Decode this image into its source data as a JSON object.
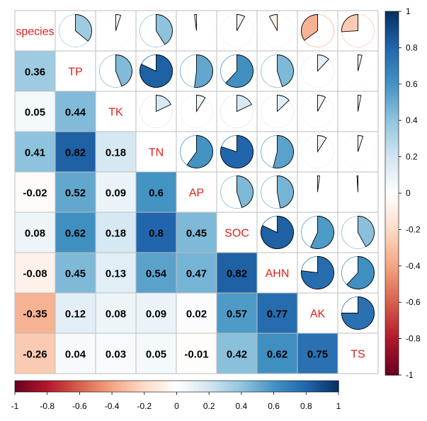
{
  "chart_data": {
    "type": "heatmap",
    "title": "",
    "variables": [
      "species",
      "TP",
      "TK",
      "TN",
      "AP",
      "SOC",
      "AHN",
      "AK",
      "TS"
    ],
    "matrix": [
      [
        1.0,
        0.36,
        0.05,
        0.41,
        -0.02,
        0.08,
        -0.08,
        -0.35,
        -0.26
      ],
      [
        0.36,
        1.0,
        0.44,
        0.82,
        0.52,
        0.62,
        0.45,
        0.12,
        0.04
      ],
      [
        0.05,
        0.44,
        1.0,
        0.18,
        0.09,
        0.18,
        0.13,
        0.08,
        0.03
      ],
      [
        0.41,
        0.82,
        0.18,
        1.0,
        0.6,
        0.8,
        0.54,
        0.09,
        0.05
      ],
      [
        -0.02,
        0.52,
        0.09,
        0.6,
        1.0,
        0.45,
        0.47,
        0.02,
        -0.01
      ],
      [
        0.08,
        0.62,
        0.18,
        0.8,
        0.45,
        1.0,
        0.82,
        0.57,
        0.42
      ],
      [
        -0.08,
        0.45,
        0.13,
        0.54,
        0.47,
        0.82,
        1.0,
        0.77,
        0.62
      ],
      [
        -0.35,
        0.12,
        0.08,
        0.09,
        0.02,
        0.57,
        0.77,
        1.0,
        0.75
      ],
      [
        -0.26,
        0.04,
        0.03,
        0.05,
        -0.01,
        0.42,
        0.62,
        0.75,
        1.0
      ]
    ],
    "lower_labels": [
      [
        "",
        "",
        "",
        "",
        "",
        "",
        "",
        "",
        ""
      ],
      [
        "0.36",
        "",
        "",
        "",
        "",
        "",
        "",
        "",
        ""
      ],
      [
        "0.05",
        "0.44",
        "",
        "",
        "",
        "",
        "",
        "",
        ""
      ],
      [
        "0.41",
        "0.82",
        "0.18",
        "",
        "",
        "",
        "",
        "",
        ""
      ],
      [
        "-0.02",
        "0.52",
        "0.09",
        "0.6",
        "",
        "",
        "",
        "",
        ""
      ],
      [
        "0.08",
        "0.62",
        "0.18",
        "0.8",
        "0.45",
        "",
        "",
        "",
        ""
      ],
      [
        "-0.08",
        "0.45",
        "0.13",
        "0.54",
        "0.47",
        "0.82",
        "",
        "",
        ""
      ],
      [
        "-0.35",
        "0.12",
        "0.08",
        "0.09",
        "0.02",
        "0.57",
        "0.77",
        "",
        ""
      ],
      [
        "-0.26",
        "0.04",
        "0.03",
        "0.05",
        "-0.01",
        "0.42",
        "0.62",
        "0.75",
        ""
      ]
    ],
    "lower_method": "color-with-number",
    "upper_method": "pie",
    "color_range": [
      -1,
      1
    ],
    "colorbar_right_ticks": [
      "1",
      "0.8",
      "0.6",
      "0.4",
      "0.2",
      "0",
      "-0.2",
      "-0.4",
      "-0.6",
      "-0.8",
      "-1"
    ],
    "colorbar_bottom_ticks": [
      "-1",
      "-0.8",
      "-0.6",
      "-0.4",
      "-0.2",
      "0",
      "0.2",
      "0.4",
      "0.6",
      "0.8",
      "1"
    ],
    "grid": true
  },
  "colors": {
    "negative_strong": "#67001F",
    "negative_mid": "#D6604D",
    "neutral": "#FFFFFF",
    "positive_mid": "#4393C3",
    "positive_strong": "#053061",
    "diagonal_label": "#E0201B",
    "grid": "#BEBEBE"
  }
}
